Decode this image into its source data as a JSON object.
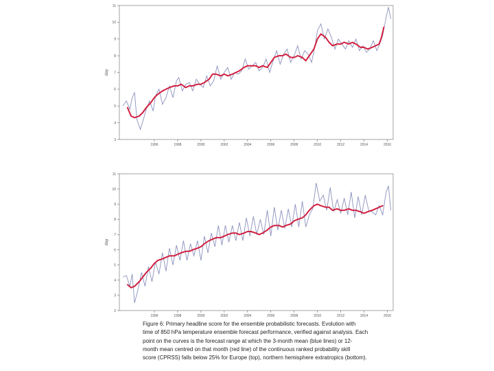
{
  "chart_data": [
    {
      "type": "line",
      "title": "",
      "xlabel": "",
      "ylabel": "day",
      "xlim": [
        1993.0,
        2016.5
      ],
      "ylim": [
        3,
        11
      ],
      "xticks": [
        1996,
        1998,
        2000,
        2002,
        2004,
        2006,
        2008,
        2010,
        2012,
        2014,
        2016
      ],
      "yticks": [
        3,
        4,
        5,
        6,
        7,
        8,
        9,
        10,
        11
      ],
      "series": [
        {
          "name": "3-month mean",
          "color": "#8a90bc",
          "x": [
            1993.3,
            1993.6,
            1993.9,
            1994.1,
            1994.3,
            1994.5,
            1994.8,
            1995.1,
            1995.3,
            1995.6,
            1995.9,
            1996.1,
            1996.4,
            1996.7,
            1997.0,
            1997.3,
            1997.6,
            1997.9,
            1998.1,
            1998.4,
            1998.7,
            1999.0,
            1999.3,
            1999.6,
            1999.9,
            2000.2,
            2000.5,
            2000.8,
            2001.1,
            2001.4,
            2001.7,
            2002.0,
            2002.3,
            2002.6,
            2002.9,
            2003.2,
            2003.5,
            2003.8,
            2004.1,
            2004.4,
            2004.7,
            2005.0,
            2005.3,
            2005.6,
            2005.9,
            2006.2,
            2006.5,
            2006.8,
            2007.1,
            2007.4,
            2007.7,
            2008.0,
            2008.3,
            2008.6,
            2008.9,
            2009.2,
            2009.5,
            2009.8,
            2010.0,
            2010.3,
            2010.6,
            2010.9,
            2011.2,
            2011.5,
            2011.8,
            2012.1,
            2012.4,
            2012.7,
            2013.0,
            2013.3,
            2013.6,
            2013.9,
            2014.2,
            2014.5,
            2014.8,
            2015.1,
            2015.4,
            2015.6,
            2015.9,
            2016.1,
            2016.3
          ],
          "values": [
            5.0,
            5.3,
            4.8,
            5.5,
            5.8,
            4.2,
            3.6,
            4.3,
            4.8,
            5.3,
            4.7,
            5.6,
            6.0,
            5.1,
            5.5,
            6.2,
            5.5,
            6.5,
            6.7,
            5.9,
            6.3,
            6.4,
            5.9,
            6.6,
            6.3,
            6.1,
            6.8,
            6.2,
            6.5,
            7.4,
            6.6,
            7.0,
            7.3,
            6.6,
            7.0,
            6.9,
            7.1,
            7.8,
            7.2,
            7.4,
            7.6,
            7.1,
            7.3,
            7.8,
            7.0,
            7.7,
            8.3,
            7.5,
            8.1,
            8.4,
            7.6,
            8.0,
            8.6,
            7.8,
            8.3,
            8.1,
            7.6,
            8.6,
            9.5,
            9.9,
            9.0,
            9.6,
            9.1,
            8.4,
            9.0,
            8.7,
            8.4,
            8.9,
            8.5,
            9.0,
            8.3,
            8.6,
            8.2,
            8.4,
            8.9,
            8.3,
            8.8,
            9.2,
            10.3,
            10.9,
            10.2
          ]
        },
        {
          "name": "12-month mean",
          "color": "#d11f3f",
          "x": [
            1993.7,
            1994.0,
            1994.3,
            1994.7,
            1995.0,
            1995.3,
            1995.7,
            1996.0,
            1996.3,
            1996.7,
            1997.0,
            1997.3,
            1997.7,
            1998.0,
            1998.3,
            1998.7,
            1999.0,
            1999.3,
            1999.7,
            2000.0,
            2000.3,
            2000.7,
            2001.0,
            2001.3,
            2001.7,
            2002.0,
            2002.3,
            2002.7,
            2003.0,
            2003.3,
            2003.7,
            2004.0,
            2004.3,
            2004.7,
            2005.0,
            2005.3,
            2005.7,
            2006.0,
            2006.3,
            2006.7,
            2007.0,
            2007.3,
            2007.7,
            2008.0,
            2008.3,
            2008.7,
            2009.0,
            2009.3,
            2009.7,
            2010.0,
            2010.3,
            2010.7,
            2011.0,
            2011.3,
            2011.7,
            2012.0,
            2012.3,
            2012.7,
            2013.0,
            2013.3,
            2013.7,
            2014.0,
            2014.3,
            2014.7,
            2015.0,
            2015.3,
            2015.5,
            2015.7
          ],
          "values": [
            4.9,
            4.4,
            4.3,
            4.4,
            4.6,
            4.9,
            5.2,
            5.5,
            5.7,
            5.9,
            6.0,
            6.1,
            6.2,
            6.2,
            6.3,
            6.1,
            6.2,
            6.2,
            6.3,
            6.3,
            6.4,
            6.6,
            6.9,
            6.9,
            6.8,
            6.9,
            6.8,
            6.9,
            7.0,
            7.1,
            7.3,
            7.4,
            7.4,
            7.4,
            7.3,
            7.4,
            7.3,
            7.6,
            7.9,
            8.0,
            8.0,
            8.1,
            7.9,
            7.9,
            8.0,
            7.9,
            7.7,
            8.0,
            8.4,
            9.0,
            9.3,
            9.1,
            8.8,
            8.6,
            8.7,
            8.7,
            8.8,
            8.7,
            8.8,
            8.7,
            8.5,
            8.5,
            8.4,
            8.5,
            8.6,
            8.7,
            9.1,
            9.7
          ]
        }
      ]
    },
    {
      "type": "line",
      "title": "",
      "xlabel": "",
      "ylabel": "day",
      "xlim": [
        1993.0,
        2016.5
      ],
      "ylim": [
        2,
        11
      ],
      "xticks": [
        1996,
        1998,
        2000,
        2002,
        2004,
        2006,
        2008,
        2010,
        2012,
        2014,
        2016
      ],
      "yticks": [
        2,
        3,
        4,
        5,
        6,
        7,
        8,
        9,
        10,
        11
      ],
      "series": [
        {
          "name": "3-month mean",
          "color": "#8a90bc",
          "x": [
            1993.3,
            1993.6,
            1993.9,
            1994.1,
            1994.3,
            1994.6,
            1994.9,
            1995.2,
            1995.5,
            1995.8,
            1996.1,
            1996.4,
            1996.7,
            1997.0,
            1997.3,
            1997.6,
            1997.9,
            1998.2,
            1998.5,
            1998.8,
            1999.1,
            1999.4,
            1999.7,
            2000.0,
            2000.3,
            2000.6,
            2000.9,
            2001.2,
            2001.5,
            2001.8,
            2002.1,
            2002.4,
            2002.7,
            2003.0,
            2003.3,
            2003.6,
            2003.9,
            2004.2,
            2004.5,
            2004.8,
            2005.1,
            2005.4,
            2005.7,
            2006.0,
            2006.3,
            2006.6,
            2006.9,
            2007.2,
            2007.5,
            2007.8,
            2008.1,
            2008.4,
            2008.7,
            2009.0,
            2009.3,
            2009.6,
            2009.9,
            2010.2,
            2010.5,
            2010.8,
            2011.1,
            2011.4,
            2011.7,
            2012.0,
            2012.3,
            2012.6,
            2012.9,
            2013.2,
            2013.5,
            2013.8,
            2014.1,
            2014.4,
            2014.7,
            2015.0,
            2015.3,
            2015.6,
            2015.9,
            2016.1,
            2016.3
          ],
          "values": [
            4.2,
            4.3,
            3.6,
            4.4,
            2.5,
            3.4,
            4.5,
            3.6,
            4.9,
            3.9,
            5.2,
            4.4,
            5.8,
            4.6,
            6.1,
            5.0,
            6.3,
            5.3,
            6.6,
            5.3,
            6.4,
            5.6,
            6.6,
            5.3,
            6.9,
            5.8,
            7.1,
            6.2,
            7.6,
            6.3,
            7.6,
            6.5,
            7.6,
            6.6,
            7.8,
            6.6,
            8.1,
            6.9,
            8.2,
            7.0,
            8.0,
            7.0,
            8.6,
            6.9,
            8.8,
            7.3,
            8.6,
            7.4,
            8.7,
            7.5,
            9.0,
            7.5,
            9.2,
            7.5,
            8.3,
            8.7,
            10.4,
            9.2,
            9.6,
            8.6,
            10.1,
            8.5,
            9.3,
            8.4,
            9.4,
            8.3,
            9.8,
            8.1,
            9.5,
            8.3,
            9.6,
            8.6,
            8.5,
            8.3,
            8.9,
            8.3,
            9.8,
            10.2,
            8.6
          ]
        },
        {
          "name": "12-month mean",
          "color": "#d11f3f",
          "x": [
            1993.7,
            1994.0,
            1994.3,
            1994.7,
            1995.0,
            1995.3,
            1995.7,
            1996.0,
            1996.3,
            1996.7,
            1997.0,
            1997.3,
            1997.7,
            1998.0,
            1998.3,
            1998.7,
            1999.0,
            1999.3,
            1999.7,
            2000.0,
            2000.3,
            2000.7,
            2001.0,
            2001.3,
            2001.7,
            2002.0,
            2002.3,
            2002.7,
            2003.0,
            2003.3,
            2003.7,
            2004.0,
            2004.3,
            2004.7,
            2005.0,
            2005.3,
            2005.7,
            2006.0,
            2006.3,
            2006.7,
            2007.0,
            2007.3,
            2007.7,
            2008.0,
            2008.3,
            2008.7,
            2009.0,
            2009.3,
            2009.7,
            2010.0,
            2010.3,
            2010.7,
            2011.0,
            2011.3,
            2011.7,
            2012.0,
            2012.3,
            2012.7,
            2013.0,
            2013.3,
            2013.7,
            2014.0,
            2014.3,
            2014.7,
            2015.0,
            2015.3,
            2015.6
          ],
          "values": [
            3.7,
            3.5,
            3.6,
            3.9,
            4.2,
            4.5,
            4.8,
            5.1,
            5.3,
            5.4,
            5.5,
            5.6,
            5.6,
            5.7,
            5.8,
            5.9,
            5.9,
            6.0,
            6.1,
            6.2,
            6.4,
            6.6,
            6.7,
            6.8,
            6.8,
            6.9,
            7.0,
            7.1,
            7.1,
            7.0,
            7.1,
            7.2,
            7.2,
            7.1,
            7.0,
            7.1,
            7.3,
            7.5,
            7.6,
            7.6,
            7.5,
            7.6,
            7.7,
            7.9,
            8.0,
            8.1,
            8.3,
            8.6,
            8.9,
            9.0,
            8.9,
            8.8,
            8.8,
            8.6,
            8.7,
            8.6,
            8.6,
            8.7,
            8.6,
            8.6,
            8.5,
            8.4,
            8.5,
            8.6,
            8.7,
            8.8,
            8.9
          ]
        }
      ]
    }
  ],
  "caption": {
    "lines": [
      "Figure 6: Primary headline score for the ensemble probabilistic forecasts. Evolution with",
      "time of 850 hPa temperature ensemble forecast performance, verified against analysis. Each",
      "point on the curves is the forecast range at which the 3-month mean (blue lines) or 12-",
      "month mean centred on that month (red line) of the continuous ranked probability skill",
      "score (CPRSS) falls below 25% for Europe (top), northern hemisphere extratropics (bottom)."
    ]
  }
}
